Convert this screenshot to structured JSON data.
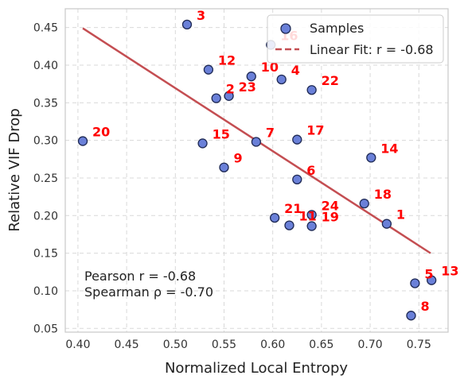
{
  "chart_data": {
    "type": "scatter",
    "xlabel": "Normalized Local Entropy",
    "ylabel": "Relative VIF Drop",
    "xlim": [
      0.387,
      0.78
    ],
    "ylim": [
      0.045,
      0.475
    ],
    "xticks": [
      "0.40",
      "0.45",
      "0.50",
      "0.55",
      "0.60",
      "0.65",
      "0.70",
      "0.75"
    ],
    "yticks": [
      "0.05",
      "0.10",
      "0.15",
      "0.20",
      "0.25",
      "0.30",
      "0.35",
      "0.40",
      "0.45"
    ],
    "grid": true,
    "legend_position": "top-right",
    "legend": {
      "samples": "Samples",
      "fit": "Linear Fit: r = -0.68"
    },
    "annotation": {
      "line1": "Pearson r = -0.68",
      "line2": "Spearman ρ = -0.70"
    },
    "colors": {
      "points": "#6a80d8",
      "point_edge": "#1f2a55",
      "fit_line": "#c44e52",
      "labels": "#ff0000"
    },
    "fit_line": {
      "x": [
        0.405,
        0.762
      ],
      "y": [
        0.449,
        0.15
      ]
    },
    "points": [
      {
        "label": "1",
        "x": 0.717,
        "y": 0.189
      },
      {
        "label": "2",
        "x": 0.542,
        "y": 0.356
      },
      {
        "label": "3",
        "x": 0.512,
        "y": 0.454
      },
      {
        "label": "4",
        "x": 0.609,
        "y": 0.381
      },
      {
        "label": "5",
        "x": 0.746,
        "y": 0.11
      },
      {
        "label": "6",
        "x": 0.625,
        "y": 0.248
      },
      {
        "label": "7",
        "x": 0.583,
        "y": 0.298
      },
      {
        "label": "8",
        "x": 0.742,
        "y": 0.067
      },
      {
        "label": "9",
        "x": 0.55,
        "y": 0.264
      },
      {
        "label": "10",
        "x": 0.578,
        "y": 0.385
      },
      {
        "label": "11",
        "x": 0.617,
        "y": 0.187
      },
      {
        "label": "12",
        "x": 0.534,
        "y": 0.394
      },
      {
        "label": "13",
        "x": 0.763,
        "y": 0.114
      },
      {
        "label": "14",
        "x": 0.701,
        "y": 0.277
      },
      {
        "label": "15",
        "x": 0.528,
        "y": 0.296
      },
      {
        "label": "16",
        "x": 0.598,
        "y": 0.427
      },
      {
        "label": "17",
        "x": 0.625,
        "y": 0.301
      },
      {
        "label": "18",
        "x": 0.694,
        "y": 0.216
      },
      {
        "label": "19",
        "x": 0.64,
        "y": 0.186
      },
      {
        "label": "20",
        "x": 0.405,
        "y": 0.299
      },
      {
        "label": "21",
        "x": 0.602,
        "y": 0.197
      },
      {
        "label": "22",
        "x": 0.64,
        "y": 0.367
      },
      {
        "label": "23",
        "x": 0.555,
        "y": 0.359
      },
      {
        "label": "24",
        "x": 0.64,
        "y": 0.201
      }
    ]
  }
}
